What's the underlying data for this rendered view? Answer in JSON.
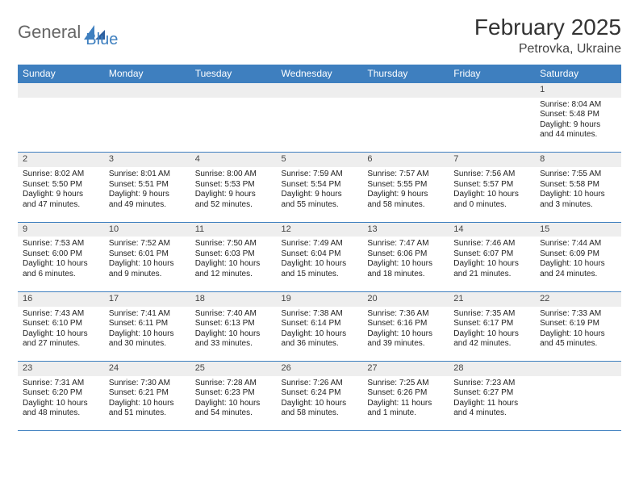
{
  "logo": {
    "word1": "General",
    "word2": "Blue"
  },
  "title": "February 2025",
  "location": "Petrovka, Ukraine",
  "weekdays": [
    "Sunday",
    "Monday",
    "Tuesday",
    "Wednesday",
    "Thursday",
    "Friday",
    "Saturday"
  ],
  "colors": {
    "header_bg": "#3e7fbf",
    "row_alt": "#eeeeee",
    "border": "#3e7fbf"
  },
  "weeks": [
    [
      null,
      null,
      null,
      null,
      null,
      null,
      {
        "n": "1",
        "sr": "Sunrise: 8:04 AM",
        "ss": "Sunset: 5:48 PM",
        "d1": "Daylight: 9 hours",
        "d2": "and 44 minutes."
      }
    ],
    [
      {
        "n": "2",
        "sr": "Sunrise: 8:02 AM",
        "ss": "Sunset: 5:50 PM",
        "d1": "Daylight: 9 hours",
        "d2": "and 47 minutes."
      },
      {
        "n": "3",
        "sr": "Sunrise: 8:01 AM",
        "ss": "Sunset: 5:51 PM",
        "d1": "Daylight: 9 hours",
        "d2": "and 49 minutes."
      },
      {
        "n": "4",
        "sr": "Sunrise: 8:00 AM",
        "ss": "Sunset: 5:53 PM",
        "d1": "Daylight: 9 hours",
        "d2": "and 52 minutes."
      },
      {
        "n": "5",
        "sr": "Sunrise: 7:59 AM",
        "ss": "Sunset: 5:54 PM",
        "d1": "Daylight: 9 hours",
        "d2": "and 55 minutes."
      },
      {
        "n": "6",
        "sr": "Sunrise: 7:57 AM",
        "ss": "Sunset: 5:55 PM",
        "d1": "Daylight: 9 hours",
        "d2": "and 58 minutes."
      },
      {
        "n": "7",
        "sr": "Sunrise: 7:56 AM",
        "ss": "Sunset: 5:57 PM",
        "d1": "Daylight: 10 hours",
        "d2": "and 0 minutes."
      },
      {
        "n": "8",
        "sr": "Sunrise: 7:55 AM",
        "ss": "Sunset: 5:58 PM",
        "d1": "Daylight: 10 hours",
        "d2": "and 3 minutes."
      }
    ],
    [
      {
        "n": "9",
        "sr": "Sunrise: 7:53 AM",
        "ss": "Sunset: 6:00 PM",
        "d1": "Daylight: 10 hours",
        "d2": "and 6 minutes."
      },
      {
        "n": "10",
        "sr": "Sunrise: 7:52 AM",
        "ss": "Sunset: 6:01 PM",
        "d1": "Daylight: 10 hours",
        "d2": "and 9 minutes."
      },
      {
        "n": "11",
        "sr": "Sunrise: 7:50 AM",
        "ss": "Sunset: 6:03 PM",
        "d1": "Daylight: 10 hours",
        "d2": "and 12 minutes."
      },
      {
        "n": "12",
        "sr": "Sunrise: 7:49 AM",
        "ss": "Sunset: 6:04 PM",
        "d1": "Daylight: 10 hours",
        "d2": "and 15 minutes."
      },
      {
        "n": "13",
        "sr": "Sunrise: 7:47 AM",
        "ss": "Sunset: 6:06 PM",
        "d1": "Daylight: 10 hours",
        "d2": "and 18 minutes."
      },
      {
        "n": "14",
        "sr": "Sunrise: 7:46 AM",
        "ss": "Sunset: 6:07 PM",
        "d1": "Daylight: 10 hours",
        "d2": "and 21 minutes."
      },
      {
        "n": "15",
        "sr": "Sunrise: 7:44 AM",
        "ss": "Sunset: 6:09 PM",
        "d1": "Daylight: 10 hours",
        "d2": "and 24 minutes."
      }
    ],
    [
      {
        "n": "16",
        "sr": "Sunrise: 7:43 AM",
        "ss": "Sunset: 6:10 PM",
        "d1": "Daylight: 10 hours",
        "d2": "and 27 minutes."
      },
      {
        "n": "17",
        "sr": "Sunrise: 7:41 AM",
        "ss": "Sunset: 6:11 PM",
        "d1": "Daylight: 10 hours",
        "d2": "and 30 minutes."
      },
      {
        "n": "18",
        "sr": "Sunrise: 7:40 AM",
        "ss": "Sunset: 6:13 PM",
        "d1": "Daylight: 10 hours",
        "d2": "and 33 minutes."
      },
      {
        "n": "19",
        "sr": "Sunrise: 7:38 AM",
        "ss": "Sunset: 6:14 PM",
        "d1": "Daylight: 10 hours",
        "d2": "and 36 minutes."
      },
      {
        "n": "20",
        "sr": "Sunrise: 7:36 AM",
        "ss": "Sunset: 6:16 PM",
        "d1": "Daylight: 10 hours",
        "d2": "and 39 minutes."
      },
      {
        "n": "21",
        "sr": "Sunrise: 7:35 AM",
        "ss": "Sunset: 6:17 PM",
        "d1": "Daylight: 10 hours",
        "d2": "and 42 minutes."
      },
      {
        "n": "22",
        "sr": "Sunrise: 7:33 AM",
        "ss": "Sunset: 6:19 PM",
        "d1": "Daylight: 10 hours",
        "d2": "and 45 minutes."
      }
    ],
    [
      {
        "n": "23",
        "sr": "Sunrise: 7:31 AM",
        "ss": "Sunset: 6:20 PM",
        "d1": "Daylight: 10 hours",
        "d2": "and 48 minutes."
      },
      {
        "n": "24",
        "sr": "Sunrise: 7:30 AM",
        "ss": "Sunset: 6:21 PM",
        "d1": "Daylight: 10 hours",
        "d2": "and 51 minutes."
      },
      {
        "n": "25",
        "sr": "Sunrise: 7:28 AM",
        "ss": "Sunset: 6:23 PM",
        "d1": "Daylight: 10 hours",
        "d2": "and 54 minutes."
      },
      {
        "n": "26",
        "sr": "Sunrise: 7:26 AM",
        "ss": "Sunset: 6:24 PM",
        "d1": "Daylight: 10 hours",
        "d2": "and 58 minutes."
      },
      {
        "n": "27",
        "sr": "Sunrise: 7:25 AM",
        "ss": "Sunset: 6:26 PM",
        "d1": "Daylight: 11 hours",
        "d2": "and 1 minute."
      },
      {
        "n": "28",
        "sr": "Sunrise: 7:23 AM",
        "ss": "Sunset: 6:27 PM",
        "d1": "Daylight: 11 hours",
        "d2": "and 4 minutes."
      },
      null
    ]
  ]
}
